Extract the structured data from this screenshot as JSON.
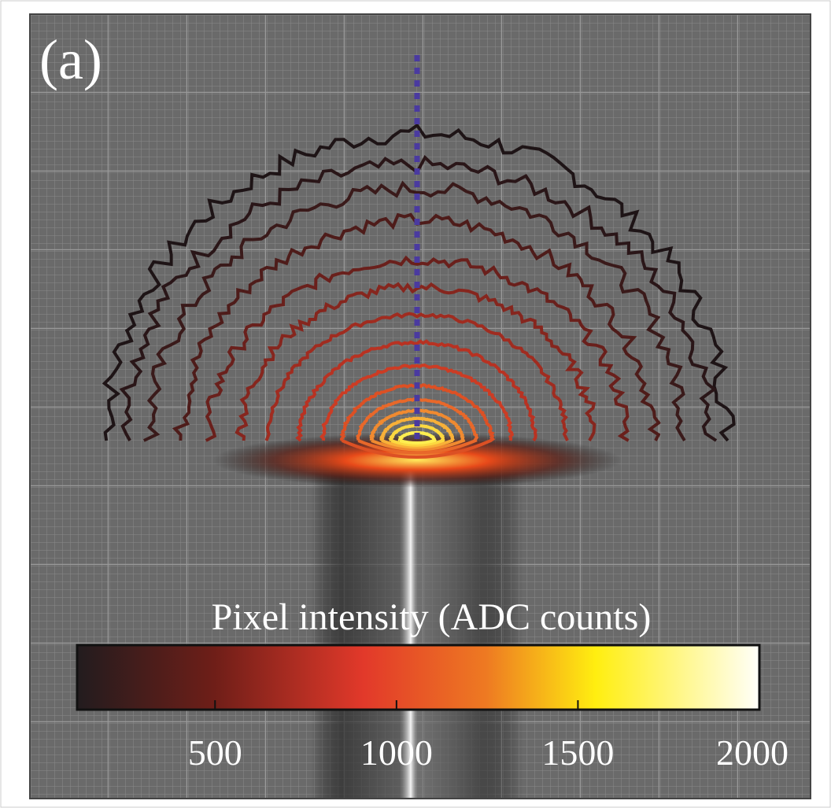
{
  "panel_label": "(a)",
  "colorbar": {
    "label": "Pixel intensity (ADC counts)",
    "lim": [
      120,
      2000
    ],
    "ticks": [
      500,
      1000,
      1500,
      2000
    ]
  }
}
